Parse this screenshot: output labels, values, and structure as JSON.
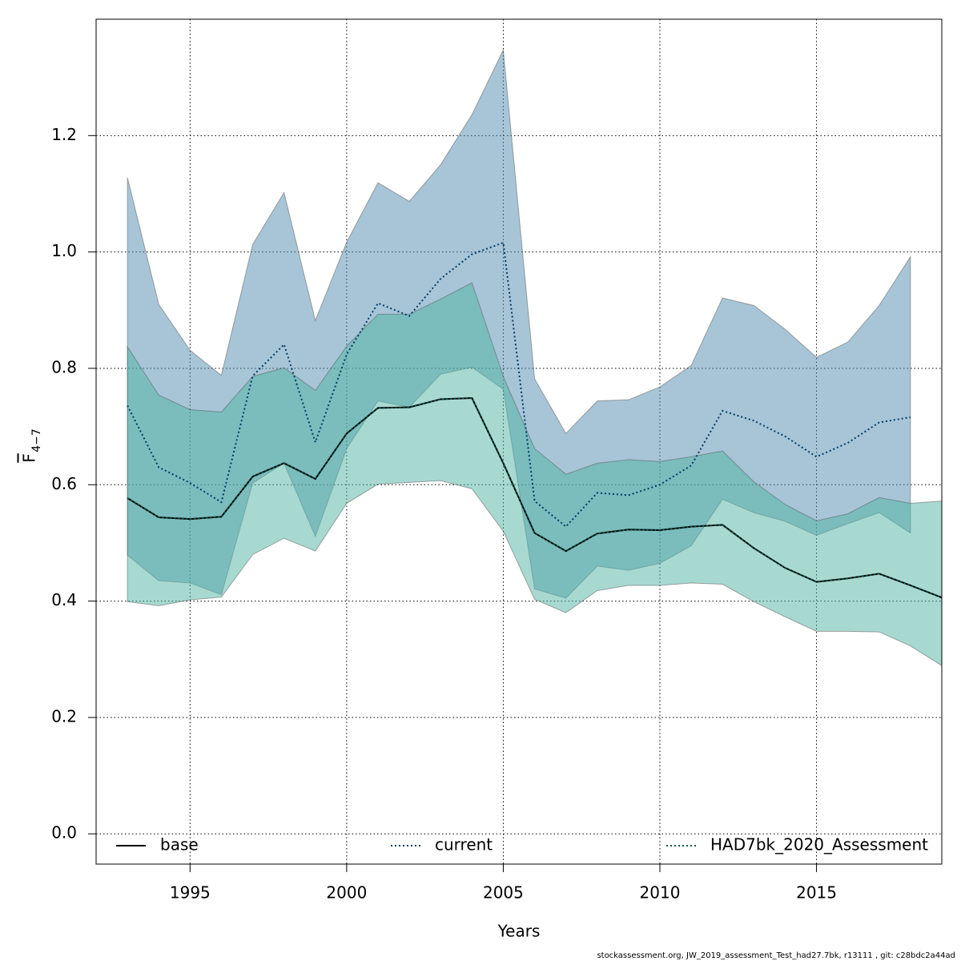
{
  "chart_data": {
    "type": "line",
    "xlabel": "Years",
    "ylabel": "F",
    "ylabel_subscript": "4−7",
    "footnote": "stockassessment.org, JW_2019_assessment_Test_had27.7bk, r13111 , git: c28bdc2a44ad",
    "x": [
      1993,
      1994,
      1995,
      1996,
      1997,
      1998,
      1999,
      2000,
      2001,
      2002,
      2003,
      2004,
      2005,
      2006,
      2007,
      2008,
      2009,
      2010,
      2011,
      2012,
      2013,
      2014,
      2015,
      2016,
      2017,
      2018,
      2019
    ],
    "xlim": [
      1992,
      2019
    ],
    "xticks": [
      1995,
      2000,
      2005,
      2010,
      2015
    ],
    "ylim": [
      -0.052,
      1.4
    ],
    "yticks": [
      {
        "value": 0,
        "label": "0.0"
      },
      0.2,
      0.4,
      0.6,
      0.8,
      {
        "value": 1,
        "label": "1.0"
      },
      1.2
    ],
    "grid": true,
    "legend": "bottom",
    "series": [
      {
        "name": "base",
        "color": "#000000",
        "dash": "solid",
        "values": [
          0.577,
          0.544,
          0.541,
          0.545,
          0.614,
          0.637,
          0.61,
          0.688,
          0.732,
          0.733,
          0.747,
          0.749,
          0.637,
          0.517,
          0.486,
          0.516,
          0.523,
          0.522,
          0.528,
          0.531,
          0.491,
          0.457,
          0.433,
          0.439,
          0.447,
          0.427,
          0.406
        ]
      },
      {
        "name": "current",
        "color": "#003a66",
        "dash": "dotted",
        "band_color": "#4f8caf",
        "values": [
          0.736,
          0.63,
          0.603,
          0.57,
          0.787,
          0.841,
          0.673,
          0.824,
          0.912,
          0.89,
          0.954,
          0.996,
          1.016,
          0.572,
          0.528,
          0.586,
          0.582,
          0.6,
          0.633,
          0.727,
          0.71,
          0.683,
          0.648,
          0.672,
          0.707,
          0.716,
          null
        ],
        "upper": [
          1.128,
          0.91,
          0.831,
          0.788,
          1.013,
          1.102,
          0.882,
          1.017,
          1.119,
          1.087,
          1.15,
          1.236,
          1.347,
          0.782,
          0.688,
          0.744,
          0.746,
          0.768,
          0.805,
          0.921,
          0.908,
          0.867,
          0.819,
          0.845,
          0.908,
          0.992,
          null
        ],
        "lower": [
          0.479,
          0.435,
          0.431,
          0.411,
          0.603,
          0.637,
          0.511,
          0.662,
          0.744,
          0.733,
          0.79,
          0.802,
          0.764,
          0.421,
          0.405,
          0.46,
          0.453,
          0.465,
          0.495,
          0.575,
          0.552,
          0.537,
          0.513,
          0.533,
          0.552,
          0.517,
          null
        ]
      },
      {
        "name": "HAD7bk_2020_Assessment",
        "color": "#00584a",
        "dash": "dotted",
        "band_color": "#4fb3a3",
        "values": [
          0.577,
          0.544,
          0.541,
          0.545,
          0.614,
          0.637,
          0.61,
          0.688,
          0.732,
          0.733,
          0.747,
          0.749,
          0.637,
          0.517,
          0.486,
          0.516,
          0.523,
          0.522,
          0.528,
          0.531,
          0.491,
          0.457,
          0.433,
          0.439,
          0.447,
          0.427,
          0.406
        ],
        "upper": [
          0.837,
          0.754,
          0.729,
          0.725,
          0.786,
          0.801,
          0.762,
          0.838,
          0.893,
          0.893,
          0.919,
          0.947,
          0.786,
          0.662,
          0.618,
          0.637,
          0.643,
          0.64,
          0.648,
          0.658,
          0.605,
          0.566,
          0.538,
          0.55,
          0.578,
          0.568,
          0.572
        ],
        "lower": [
          0.399,
          0.392,
          0.402,
          0.407,
          0.48,
          0.508,
          0.486,
          0.568,
          0.601,
          0.604,
          0.607,
          0.593,
          0.52,
          0.403,
          0.38,
          0.418,
          0.427,
          0.427,
          0.431,
          0.429,
          0.399,
          0.373,
          0.348,
          0.348,
          0.347,
          0.323,
          0.289
        ]
      }
    ]
  }
}
